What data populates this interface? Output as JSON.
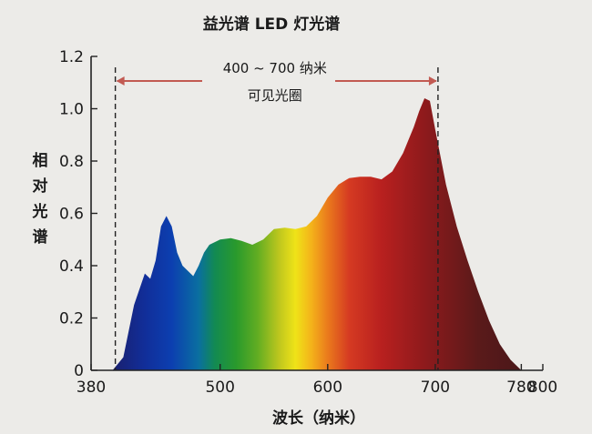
{
  "chart_data": {
    "type": "area",
    "title": "益光谱 LED 灯光谱",
    "xlabel": "波长（纳米）",
    "ylabel": "相对光谱",
    "xlim": [
      380,
      800
    ],
    "ylim": [
      0,
      1.2
    ],
    "x_ticks": [
      380,
      500,
      600,
      700,
      780,
      800
    ],
    "y_ticks": [
      0,
      0.2,
      0.4,
      0.6,
      0.8,
      1.0,
      1.2
    ],
    "y_tick_labels": [
      "0",
      "0.2",
      "0.4",
      "0.6",
      "0.8",
      "1.0",
      "1.2"
    ],
    "visible_range": {
      "start": 400,
      "end": 700,
      "label_range": "400 ~ 700 纳米",
      "label_name": "可见光圈"
    },
    "fill": "wavelength-colored spectrum",
    "x": [
      400,
      410,
      420,
      430,
      435,
      440,
      445,
      450,
      455,
      460,
      465,
      470,
      475,
      480,
      485,
      490,
      500,
      510,
      520,
      530,
      540,
      550,
      560,
      570,
      580,
      590,
      600,
      610,
      620,
      630,
      640,
      650,
      660,
      670,
      680,
      685,
      690,
      695,
      700,
      710,
      720,
      730,
      740,
      750,
      760,
      770,
      780
    ],
    "y": [
      0.0,
      0.05,
      0.25,
      0.37,
      0.35,
      0.42,
      0.55,
      0.59,
      0.55,
      0.45,
      0.4,
      0.38,
      0.36,
      0.4,
      0.45,
      0.48,
      0.5,
      0.505,
      0.495,
      0.48,
      0.5,
      0.54,
      0.545,
      0.54,
      0.55,
      0.59,
      0.66,
      0.71,
      0.735,
      0.74,
      0.74,
      0.73,
      0.76,
      0.83,
      0.93,
      0.99,
      1.04,
      1.03,
      0.92,
      0.71,
      0.55,
      0.42,
      0.3,
      0.19,
      0.1,
      0.04,
      0.0
    ]
  }
}
